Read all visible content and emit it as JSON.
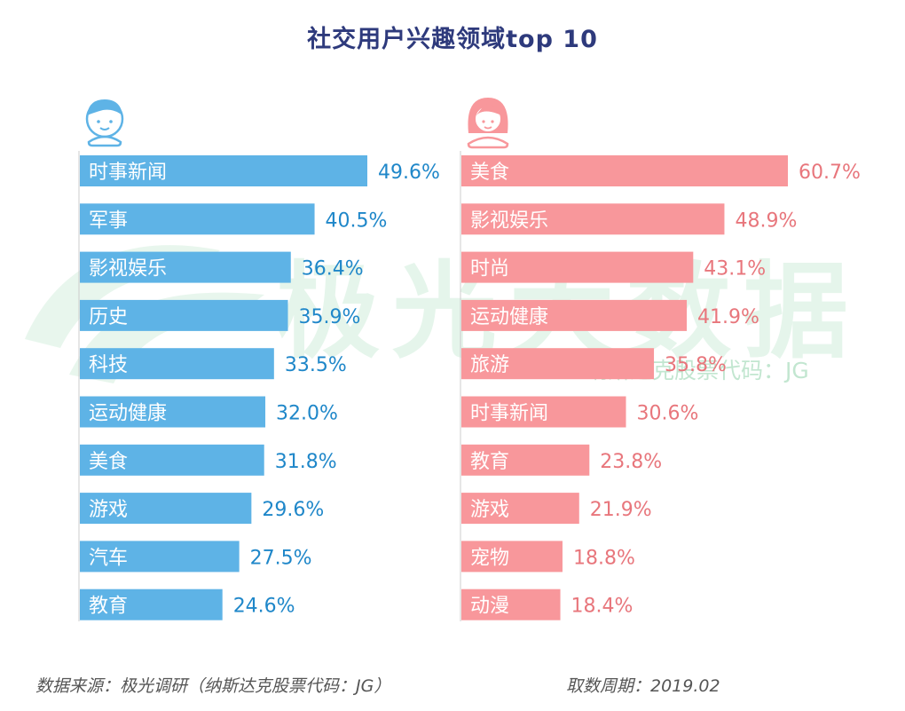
{
  "title": "社交用户兴趣领域top 10",
  "watermark": {
    "big": "极光大数据",
    "small": "纳斯达克股票代码：JG"
  },
  "footer": {
    "source": "数据来源：极光调研（纳斯达克股票代码：JG）",
    "period": "取数周期：2019.02"
  },
  "colors": {
    "male": "#5eb3e6",
    "male_text": "#1f87c9",
    "female": "#f8979b",
    "female_text": "#e8767c",
    "title": "#2e3a7c"
  },
  "icons": {
    "male": "boy-avatar-icon",
    "female": "girl-avatar-icon"
  },
  "chart_data": [
    {
      "type": "bar",
      "orientation": "horizontal",
      "series_color": "#5eb3e6",
      "categories": [
        "时事新闻",
        "军事",
        "影视娱乐",
        "历史",
        "科技",
        "运动健康",
        "美食",
        "游戏",
        "汽车",
        "教育"
      ],
      "values": [
        49.6,
        40.5,
        36.4,
        35.9,
        33.5,
        32.0,
        31.8,
        29.6,
        27.5,
        24.6
      ],
      "labels": [
        "49.6%",
        "40.5%",
        "36.4%",
        "35.9%",
        "33.5%",
        "32.0%",
        "31.8%",
        "29.6%",
        "27.5%",
        "24.6%"
      ]
    },
    {
      "type": "bar",
      "orientation": "horizontal",
      "series_color": "#f8979b",
      "categories": [
        "美食",
        "影视娱乐",
        "时尚",
        "运动健康",
        "旅游",
        "时事新闻",
        "教育",
        "游戏",
        "宠物",
        "动漫"
      ],
      "values": [
        60.7,
        48.9,
        43.1,
        41.9,
        35.8,
        30.6,
        23.8,
        21.9,
        18.8,
        18.4
      ],
      "labels": [
        "60.7%",
        "48.9%",
        "43.1%",
        "41.9%",
        "35.8%",
        "30.6%",
        "23.8%",
        "21.9%",
        "18.8%",
        "18.4%"
      ]
    }
  ]
}
